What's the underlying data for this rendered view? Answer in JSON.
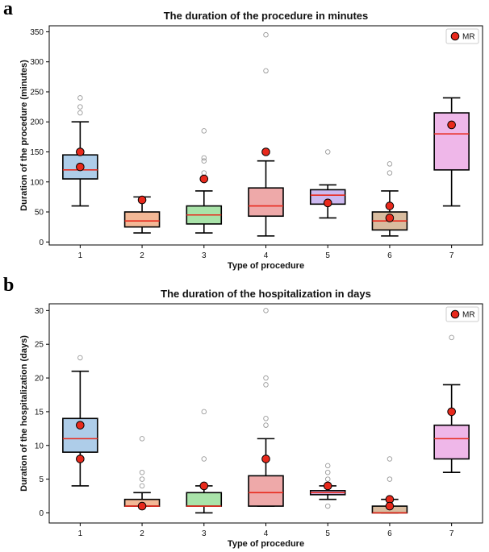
{
  "panels": [
    {
      "letter": "a"
    },
    {
      "letter": "b"
    }
  ],
  "colors": {
    "box_fills": [
      "#aecde9",
      "#f2b896",
      "#a9e3a9",
      "#eea9a9",
      "#cdb9f0",
      "#d9bc9f",
      "#efb7e9"
    ],
    "median": "#e8291c",
    "mr_marker": "#e8291c",
    "outlier": "#9a9a9a"
  },
  "chart_data": [
    {
      "type": "boxplot",
      "title": "The duration of the procedure in minutes",
      "xlabel": "Type of procedure",
      "ylabel": "Duration of the procedure (minutes)",
      "categories": [
        "1",
        "2",
        "3",
        "4",
        "5",
        "6",
        "7"
      ],
      "ylim": [
        -5,
        360
      ],
      "yticks": [
        0,
        50,
        100,
        150,
        200,
        250,
        300,
        350
      ],
      "legend": {
        "label": "MR",
        "placement": "top-right"
      },
      "boxes": [
        {
          "category": "1",
          "whisker_low": 60,
          "q1": 105,
          "median": 120,
          "q3": 145,
          "whisker_high": 200,
          "outliers": [
            215,
            225,
            240
          ],
          "mr": [
            150,
            125
          ]
        },
        {
          "category": "2",
          "whisker_low": 15,
          "q1": 25,
          "median": 35,
          "q3": 50,
          "whisker_high": 75,
          "outliers": [],
          "mr": [
            70
          ]
        },
        {
          "category": "3",
          "whisker_low": 15,
          "q1": 30,
          "median": 45,
          "q3": 60,
          "whisker_high": 85,
          "outliers": [
            115,
            135,
            140,
            185
          ],
          "mr": [
            105
          ]
        },
        {
          "category": "4",
          "whisker_low": 10,
          "q1": 43,
          "median": 60,
          "q3": 90,
          "whisker_high": 135,
          "outliers": [
            285,
            345
          ],
          "mr": [
            150
          ]
        },
        {
          "category": "5",
          "whisker_low": 40,
          "q1": 63,
          "median": 78,
          "q3": 87,
          "whisker_high": 95,
          "outliers": [
            150
          ],
          "mr": [
            65
          ]
        },
        {
          "category": "6",
          "whisker_low": 10,
          "q1": 20,
          "median": 35,
          "q3": 50,
          "whisker_high": 85,
          "outliers": [
            115,
            130
          ],
          "mr": [
            60,
            40
          ]
        },
        {
          "category": "7",
          "whisker_low": 60,
          "q1": 120,
          "median": 180,
          "q3": 215,
          "whisker_high": 240,
          "outliers": [],
          "mr": [
            195
          ]
        }
      ]
    },
    {
      "type": "boxplot",
      "title": "The duration of the hospitalization in days",
      "xlabel": "Type of procedure",
      "ylabel": "Duration of the hospitalization (days)",
      "categories": [
        "1",
        "2",
        "3",
        "4",
        "5",
        "6",
        "7"
      ],
      "ylim": [
        -1.5,
        31
      ],
      "yticks": [
        0,
        5,
        10,
        15,
        20,
        25,
        30
      ],
      "legend": {
        "label": "MR",
        "placement": "top-right"
      },
      "boxes": [
        {
          "category": "1",
          "whisker_low": 4,
          "q1": 9,
          "median": 11,
          "q3": 14,
          "whisker_high": 21,
          "outliers": [
            23
          ],
          "mr": [
            13,
            8
          ]
        },
        {
          "category": "2",
          "whisker_low": 1,
          "q1": 1,
          "median": 1,
          "q3": 2,
          "whisker_high": 3,
          "outliers": [
            4,
            5,
            6,
            11
          ],
          "mr": [
            1
          ]
        },
        {
          "category": "3",
          "whisker_low": 0,
          "q1": 1,
          "median": 1,
          "q3": 3,
          "whisker_high": 4,
          "outliers": [
            8,
            15
          ],
          "mr": [
            4
          ]
        },
        {
          "category": "4",
          "whisker_low": 1,
          "q1": 1,
          "median": 3,
          "q3": 5.5,
          "whisker_high": 11,
          "outliers": [
            13,
            14,
            19,
            20,
            30
          ],
          "mr": [
            8
          ]
        },
        {
          "category": "5",
          "whisker_low": 2,
          "q1": 2.7,
          "median": 3,
          "q3": 3.3,
          "whisker_high": 4,
          "outliers": [
            1,
            5,
            6,
            7
          ],
          "mr": [
            4
          ]
        },
        {
          "category": "6",
          "whisker_low": 0,
          "q1": 0,
          "median": 0,
          "q3": 1,
          "whisker_high": 2,
          "outliers": [
            5,
            8
          ],
          "mr": [
            2,
            1
          ]
        },
        {
          "category": "7",
          "whisker_low": 6,
          "q1": 8,
          "median": 11,
          "q3": 13,
          "whisker_high": 19,
          "outliers": [
            26
          ],
          "mr": [
            15
          ]
        }
      ]
    }
  ]
}
